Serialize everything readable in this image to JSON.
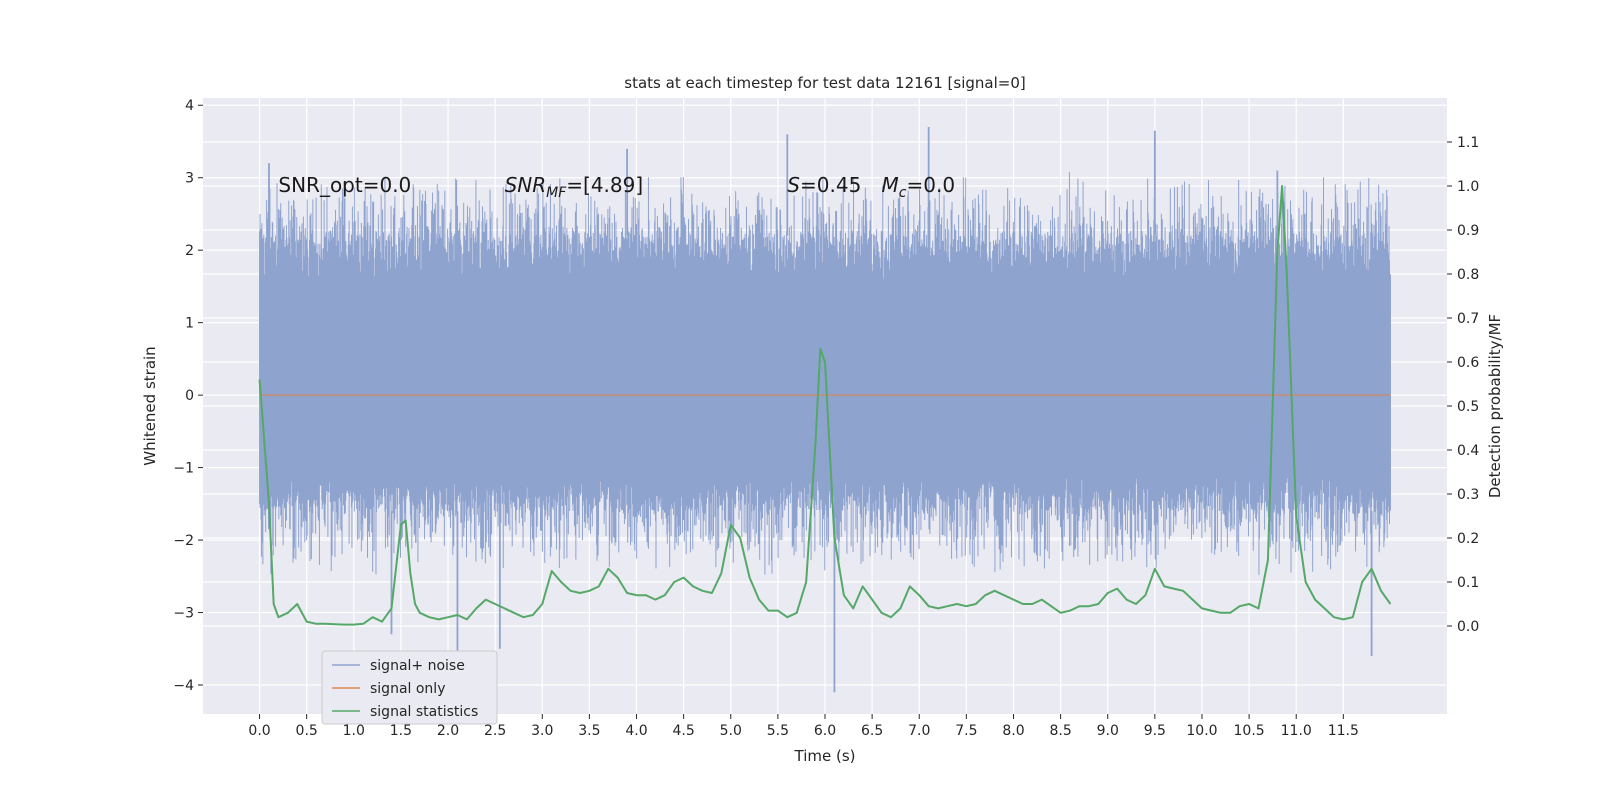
{
  "chart_data": {
    "type": "line",
    "title": "stats at each timestep for test data 12161 [signal=0]",
    "xlabel": "Time (s)",
    "ylabel": "Whitened strain",
    "y2label": "Detection probability/MF",
    "xlim": [
      -0.6,
      12.6
    ],
    "ylim": [
      -4.4,
      4.1
    ],
    "y2lim": [
      -0.2,
      1.2
    ],
    "xticks": [
      0.0,
      0.5,
      1.0,
      1.5,
      2.0,
      2.5,
      3.0,
      3.5,
      4.0,
      4.5,
      5.0,
      5.5,
      6.0,
      6.5,
      7.0,
      7.5,
      8.0,
      8.5,
      9.0,
      9.5,
      10.0,
      10.5,
      11.0,
      11.5
    ],
    "xtick_labels": [
      "0.0",
      "0.5",
      "1.0",
      "1.5",
      "2.0",
      "2.5",
      "3.0",
      "3.5",
      "4.0",
      "4.5",
      "5.0",
      "5.5",
      "6.0",
      "6.5",
      "7.0",
      "7.5",
      "8.0",
      "8.5",
      "9.0",
      "9.5",
      "10.0",
      "10.5",
      "11.0",
      "11.5"
    ],
    "yticks": [
      -4,
      -3,
      -2,
      -1,
      0,
      1,
      2,
      3,
      4
    ],
    "ytick_labels": [
      "−4",
      "−3",
      "−2",
      "−1",
      "0",
      "1",
      "2",
      "3",
      "4"
    ],
    "y2ticks": [
      0.0,
      0.1,
      0.2,
      0.3,
      0.4,
      0.5,
      0.6,
      0.7,
      0.8,
      0.9,
      1.0,
      1.1
    ],
    "y2tick_labels": [
      "0.0",
      "0.1",
      "0.2",
      "0.3",
      "0.4",
      "0.5",
      "0.6",
      "0.7",
      "0.8",
      "0.9",
      "1.0",
      "1.1"
    ],
    "grid": true,
    "legend_position": "lower-left",
    "annotations": [
      {
        "label": "SNR_opt=0.0",
        "x": 0.2,
        "y": 2.9
      },
      {
        "label": "SNR_MF=[4.89]",
        "x": 2.6,
        "y": 2.9
      },
      {
        "label": "S=0.45",
        "x": 5.6,
        "y": 2.9
      },
      {
        "label": "M_c=0.0",
        "x": 6.6,
        "y": 2.9
      }
    ],
    "series": [
      {
        "name": "signal+ noise",
        "axis": "left",
        "color": "#8fa3cf",
        "kind": "noise_band",
        "x_range": [
          0.0,
          12.0
        ],
        "typical_range": [
          -1.6,
          2.2
        ],
        "extremes": [
          {
            "x": 0.1,
            "y": 3.2
          },
          {
            "x": 1.4,
            "y": -3.3
          },
          {
            "x": 2.1,
            "y": -3.6
          },
          {
            "x": 2.55,
            "y": -3.5
          },
          {
            "x": 3.9,
            "y": 3.4
          },
          {
            "x": 5.6,
            "y": 3.6
          },
          {
            "x": 6.1,
            "y": -4.1
          },
          {
            "x": 7.1,
            "y": 3.7
          },
          {
            "x": 9.5,
            "y": 3.65
          },
          {
            "x": 10.8,
            "y": 3.1
          },
          {
            "x": 11.8,
            "y": -3.6
          }
        ]
      },
      {
        "name": "signal only",
        "axis": "left",
        "color": "#dd8452",
        "x": [
          0.0,
          12.0
        ],
        "values": [
          0.0,
          0.0
        ]
      },
      {
        "name": "signal statistics",
        "axis": "right",
        "color": "#55a868",
        "x": [
          0.0,
          0.1,
          0.15,
          0.2,
          0.3,
          0.4,
          0.5,
          0.6,
          0.7,
          0.8,
          0.9,
          1.0,
          1.1,
          1.2,
          1.3,
          1.4,
          1.5,
          1.55,
          1.6,
          1.65,
          1.7,
          1.8,
          1.9,
          2.0,
          2.1,
          2.2,
          2.3,
          2.4,
          2.5,
          2.6,
          2.7,
          2.8,
          2.9,
          3.0,
          3.1,
          3.2,
          3.3,
          3.4,
          3.5,
          3.6,
          3.7,
          3.8,
          3.9,
          4.0,
          4.1,
          4.2,
          4.3,
          4.4,
          4.5,
          4.6,
          4.7,
          4.8,
          4.9,
          5.0,
          5.1,
          5.2,
          5.3,
          5.4,
          5.5,
          5.6,
          5.7,
          5.8,
          5.9,
          5.95,
          6.0,
          6.1,
          6.2,
          6.3,
          6.4,
          6.5,
          6.6,
          6.7,
          6.8,
          6.9,
          7.0,
          7.1,
          7.2,
          7.3,
          7.4,
          7.5,
          7.6,
          7.7,
          7.8,
          7.9,
          8.0,
          8.1,
          8.2,
          8.3,
          8.4,
          8.5,
          8.6,
          8.7,
          8.8,
          8.9,
          9.0,
          9.1,
          9.2,
          9.3,
          9.4,
          9.5,
          9.6,
          9.7,
          9.8,
          9.9,
          10.0,
          10.1,
          10.2,
          10.3,
          10.4,
          10.5,
          10.6,
          10.7,
          10.8,
          10.85,
          10.9,
          11.0,
          11.1,
          11.2,
          11.3,
          11.4,
          11.5,
          11.6,
          11.7,
          11.8,
          11.9,
          12.0
        ],
        "values": [
          0.56,
          0.28,
          0.05,
          0.02,
          0.03,
          0.05,
          0.01,
          0.005,
          0.005,
          0.004,
          0.003,
          0.003,
          0.005,
          0.02,
          0.01,
          0.04,
          0.23,
          0.24,
          0.12,
          0.05,
          0.03,
          0.02,
          0.015,
          0.02,
          0.025,
          0.015,
          0.04,
          0.06,
          0.05,
          0.04,
          0.03,
          0.02,
          0.025,
          0.05,
          0.125,
          0.1,
          0.08,
          0.075,
          0.08,
          0.09,
          0.13,
          0.11,
          0.075,
          0.07,
          0.07,
          0.06,
          0.07,
          0.1,
          0.11,
          0.09,
          0.08,
          0.075,
          0.12,
          0.23,
          0.2,
          0.11,
          0.06,
          0.035,
          0.035,
          0.02,
          0.03,
          0.1,
          0.42,
          0.63,
          0.6,
          0.2,
          0.07,
          0.04,
          0.09,
          0.06,
          0.03,
          0.02,
          0.04,
          0.09,
          0.07,
          0.045,
          0.04,
          0.045,
          0.05,
          0.045,
          0.05,
          0.07,
          0.08,
          0.07,
          0.06,
          0.05,
          0.05,
          0.06,
          0.045,
          0.03,
          0.035,
          0.045,
          0.045,
          0.05,
          0.075,
          0.085,
          0.06,
          0.05,
          0.07,
          0.13,
          0.09,
          0.085,
          0.08,
          0.06,
          0.04,
          0.035,
          0.03,
          0.03,
          0.045,
          0.05,
          0.04,
          0.15,
          0.85,
          1.0,
          0.8,
          0.25,
          0.1,
          0.06,
          0.04,
          0.02,
          0.015,
          0.02,
          0.1,
          0.13,
          0.08,
          0.05
        ]
      }
    ]
  }
}
